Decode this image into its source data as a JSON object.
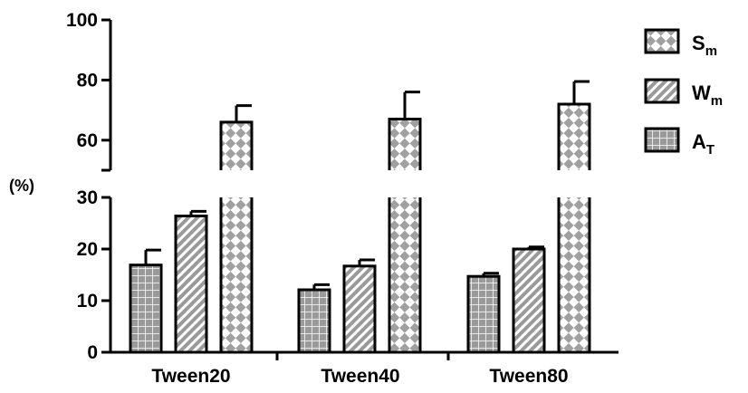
{
  "chart_data": {
    "type": "bar",
    "title": "",
    "xlabel": "",
    "ylabel": "(%)",
    "categories": [
      "Tween20",
      "Tween40",
      "Tween80"
    ],
    "series": [
      {
        "name": "A",
        "subscript": "T",
        "pattern": "grid",
        "values": [
          16.9,
          12.1,
          14.7
        ],
        "errors": [
          2.9,
          1.0,
          0.6
        ]
      },
      {
        "name": "W",
        "subscript": "m",
        "pattern": "diagonal",
        "values": [
          26.4,
          16.7,
          20.0
        ],
        "errors": [
          0.9,
          1.2,
          0.4
        ]
      },
      {
        "name": "S",
        "subscript": "m",
        "pattern": "checker",
        "values": [
          66.0,
          67.0,
          72.0
        ],
        "errors": [
          5.5,
          9.0,
          7.5
        ]
      }
    ],
    "y_axis": {
      "broken": true,
      "lower_range": [
        0,
        30
      ],
      "upper_range": [
        50,
        100
      ],
      "ticks_lower": [
        "0",
        "10",
        "20",
        "30"
      ],
      "ticks_upper": [
        "60",
        "80",
        "100"
      ]
    },
    "legend": {
      "placement": "top-right",
      "order": [
        "S",
        "W",
        "A"
      ]
    },
    "grid": false,
    "colors": {
      "bar_fill": "#9a9a9a",
      "pattern_line": "#ffffff",
      "stroke": "#000000"
    }
  }
}
